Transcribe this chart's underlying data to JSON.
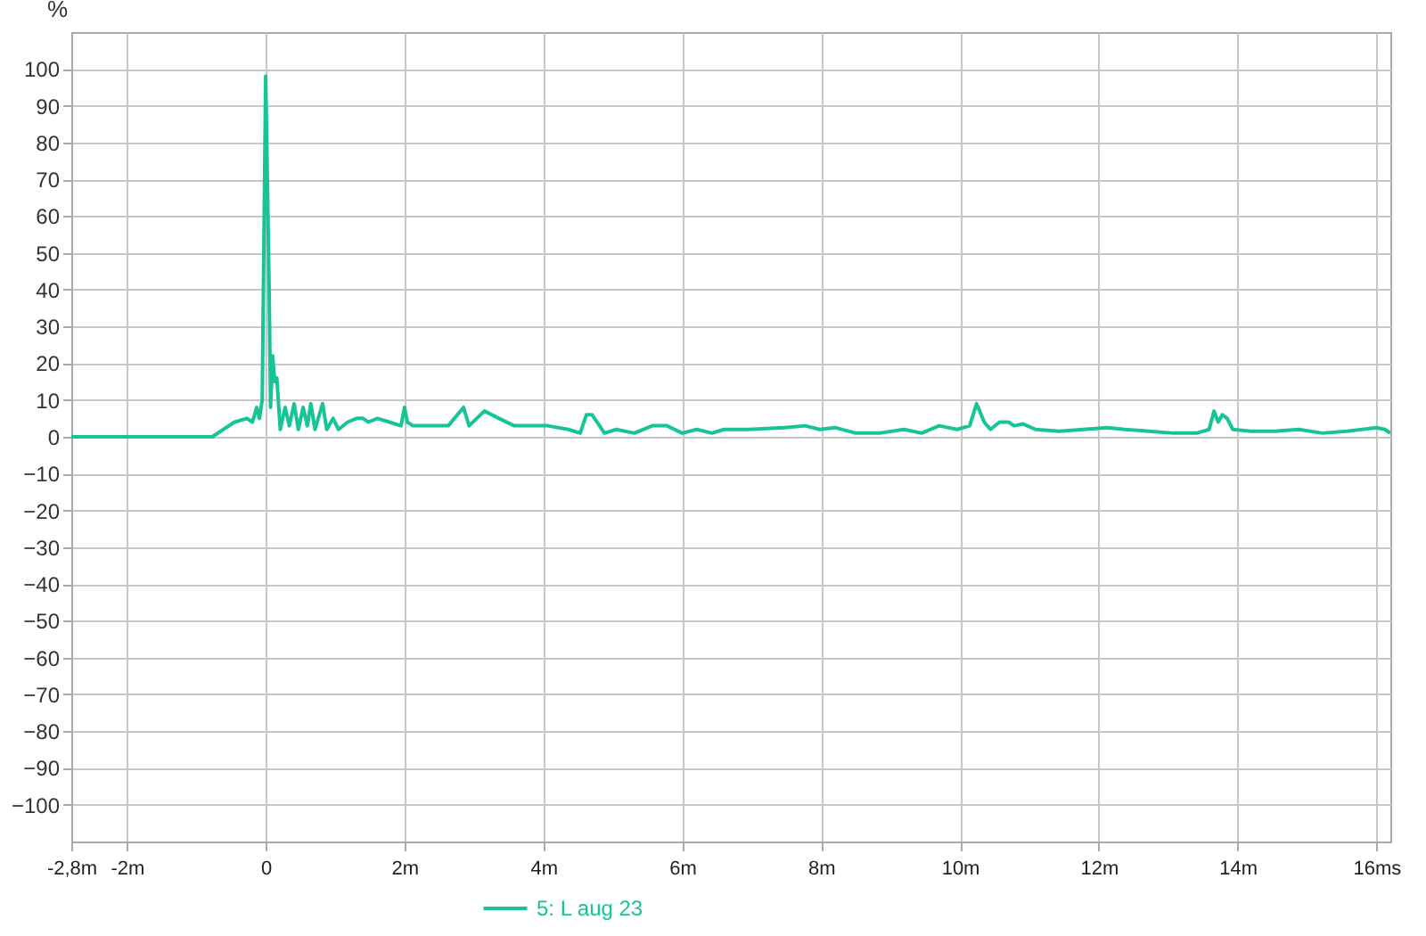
{
  "chart_data": {
    "type": "line",
    "ylabel": "%",
    "xlim": [
      -2.8,
      16.2
    ],
    "xticks": [
      {
        "value": -2.8,
        "label": "-2,8m"
      },
      {
        "value": -2,
        "label": "-2m"
      },
      0,
      {
        "value": 2,
        "label": "2m"
      },
      {
        "value": 4,
        "label": "4m"
      },
      {
        "value": 6,
        "label": "6m"
      },
      {
        "value": 8,
        "label": "8m"
      },
      {
        "value": 10,
        "label": "10m"
      },
      {
        "value": 12,
        "label": "12m"
      },
      {
        "value": 14,
        "label": "14m"
      },
      {
        "value": 16,
        "label": "16ms"
      }
    ],
    "ylim": [
      -110,
      110
    ],
    "yticks": [
      -100,
      -90,
      -80,
      -70,
      -60,
      -50,
      -40,
      -30,
      -20,
      -10,
      0,
      10,
      20,
      30,
      40,
      50,
      60,
      70,
      80,
      90,
      100
    ],
    "grid": true,
    "legend": "bottom",
    "marker": "none",
    "line_style": "solid",
    "series": [
      {
        "name": "5: L aug 23",
        "color": "#17c497",
        "x": [
          -2.8,
          -0.77,
          -0.45,
          -0.27,
          -0.19,
          -0.13,
          -0.09,
          -0.05,
          0,
          0.05,
          0.07,
          0.1,
          0.13,
          0.16,
          0.21,
          0.28,
          0.34,
          0.41,
          0.47,
          0.54,
          0.6,
          0.65,
          0.71,
          0.82,
          0.88,
          0.97,
          1.05,
          1.18,
          1.31,
          1.4,
          1.48,
          1.61,
          1.78,
          1.95,
          2.0,
          2.04,
          2.12,
          2.37,
          2.63,
          2.85,
          2.93,
          3.15,
          3.36,
          3.58,
          3.84,
          4.06,
          4.36,
          4.53,
          4.62,
          4.7,
          4.88,
          5.05,
          5.31,
          5.57,
          5.78,
          6.0,
          6.21,
          6.43,
          6.6,
          6.95,
          7.47,
          7.77,
          7.98,
          8.2,
          8.5,
          8.84,
          9.19,
          9.45,
          9.7,
          9.96,
          10.14,
          10.24,
          10.35,
          10.44,
          10.57,
          10.7,
          10.78,
          10.91,
          11.09,
          11.43,
          11.78,
          12.12,
          12.38,
          12.72,
          13.07,
          13.41,
          13.59,
          13.66,
          13.72,
          13.78,
          13.85,
          13.93,
          14.19,
          14.53,
          14.88,
          15.22,
          15.57,
          16.0,
          16.12,
          16.2
        ],
        "values": [
          0,
          0,
          4,
          5,
          4,
          8,
          5,
          10,
          98,
          40,
          8,
          22,
          15,
          16,
          2,
          8,
          3,
          9,
          2,
          8,
          3,
          9,
          2,
          9,
          2,
          5,
          2,
          4,
          5,
          5,
          4,
          5,
          4,
          3,
          8,
          4,
          3,
          3,
          3,
          8,
          3,
          7,
          5,
          3,
          3,
          3,
          2,
          1,
          6,
          6,
          1,
          2,
          1,
          3,
          3,
          1,
          2,
          1,
          2,
          2,
          2.5,
          3,
          2,
          2.5,
          1,
          1,
          2,
          1,
          3,
          2,
          3,
          9,
          4,
          2,
          4,
          4,
          3,
          3.5,
          2,
          1.5,
          2,
          2.5,
          2,
          1.5,
          1,
          1,
          2,
          7,
          4,
          6,
          5,
          2,
          1.5,
          1.5,
          2,
          1,
          1.5,
          2.5,
          2,
          1
        ]
      }
    ]
  }
}
